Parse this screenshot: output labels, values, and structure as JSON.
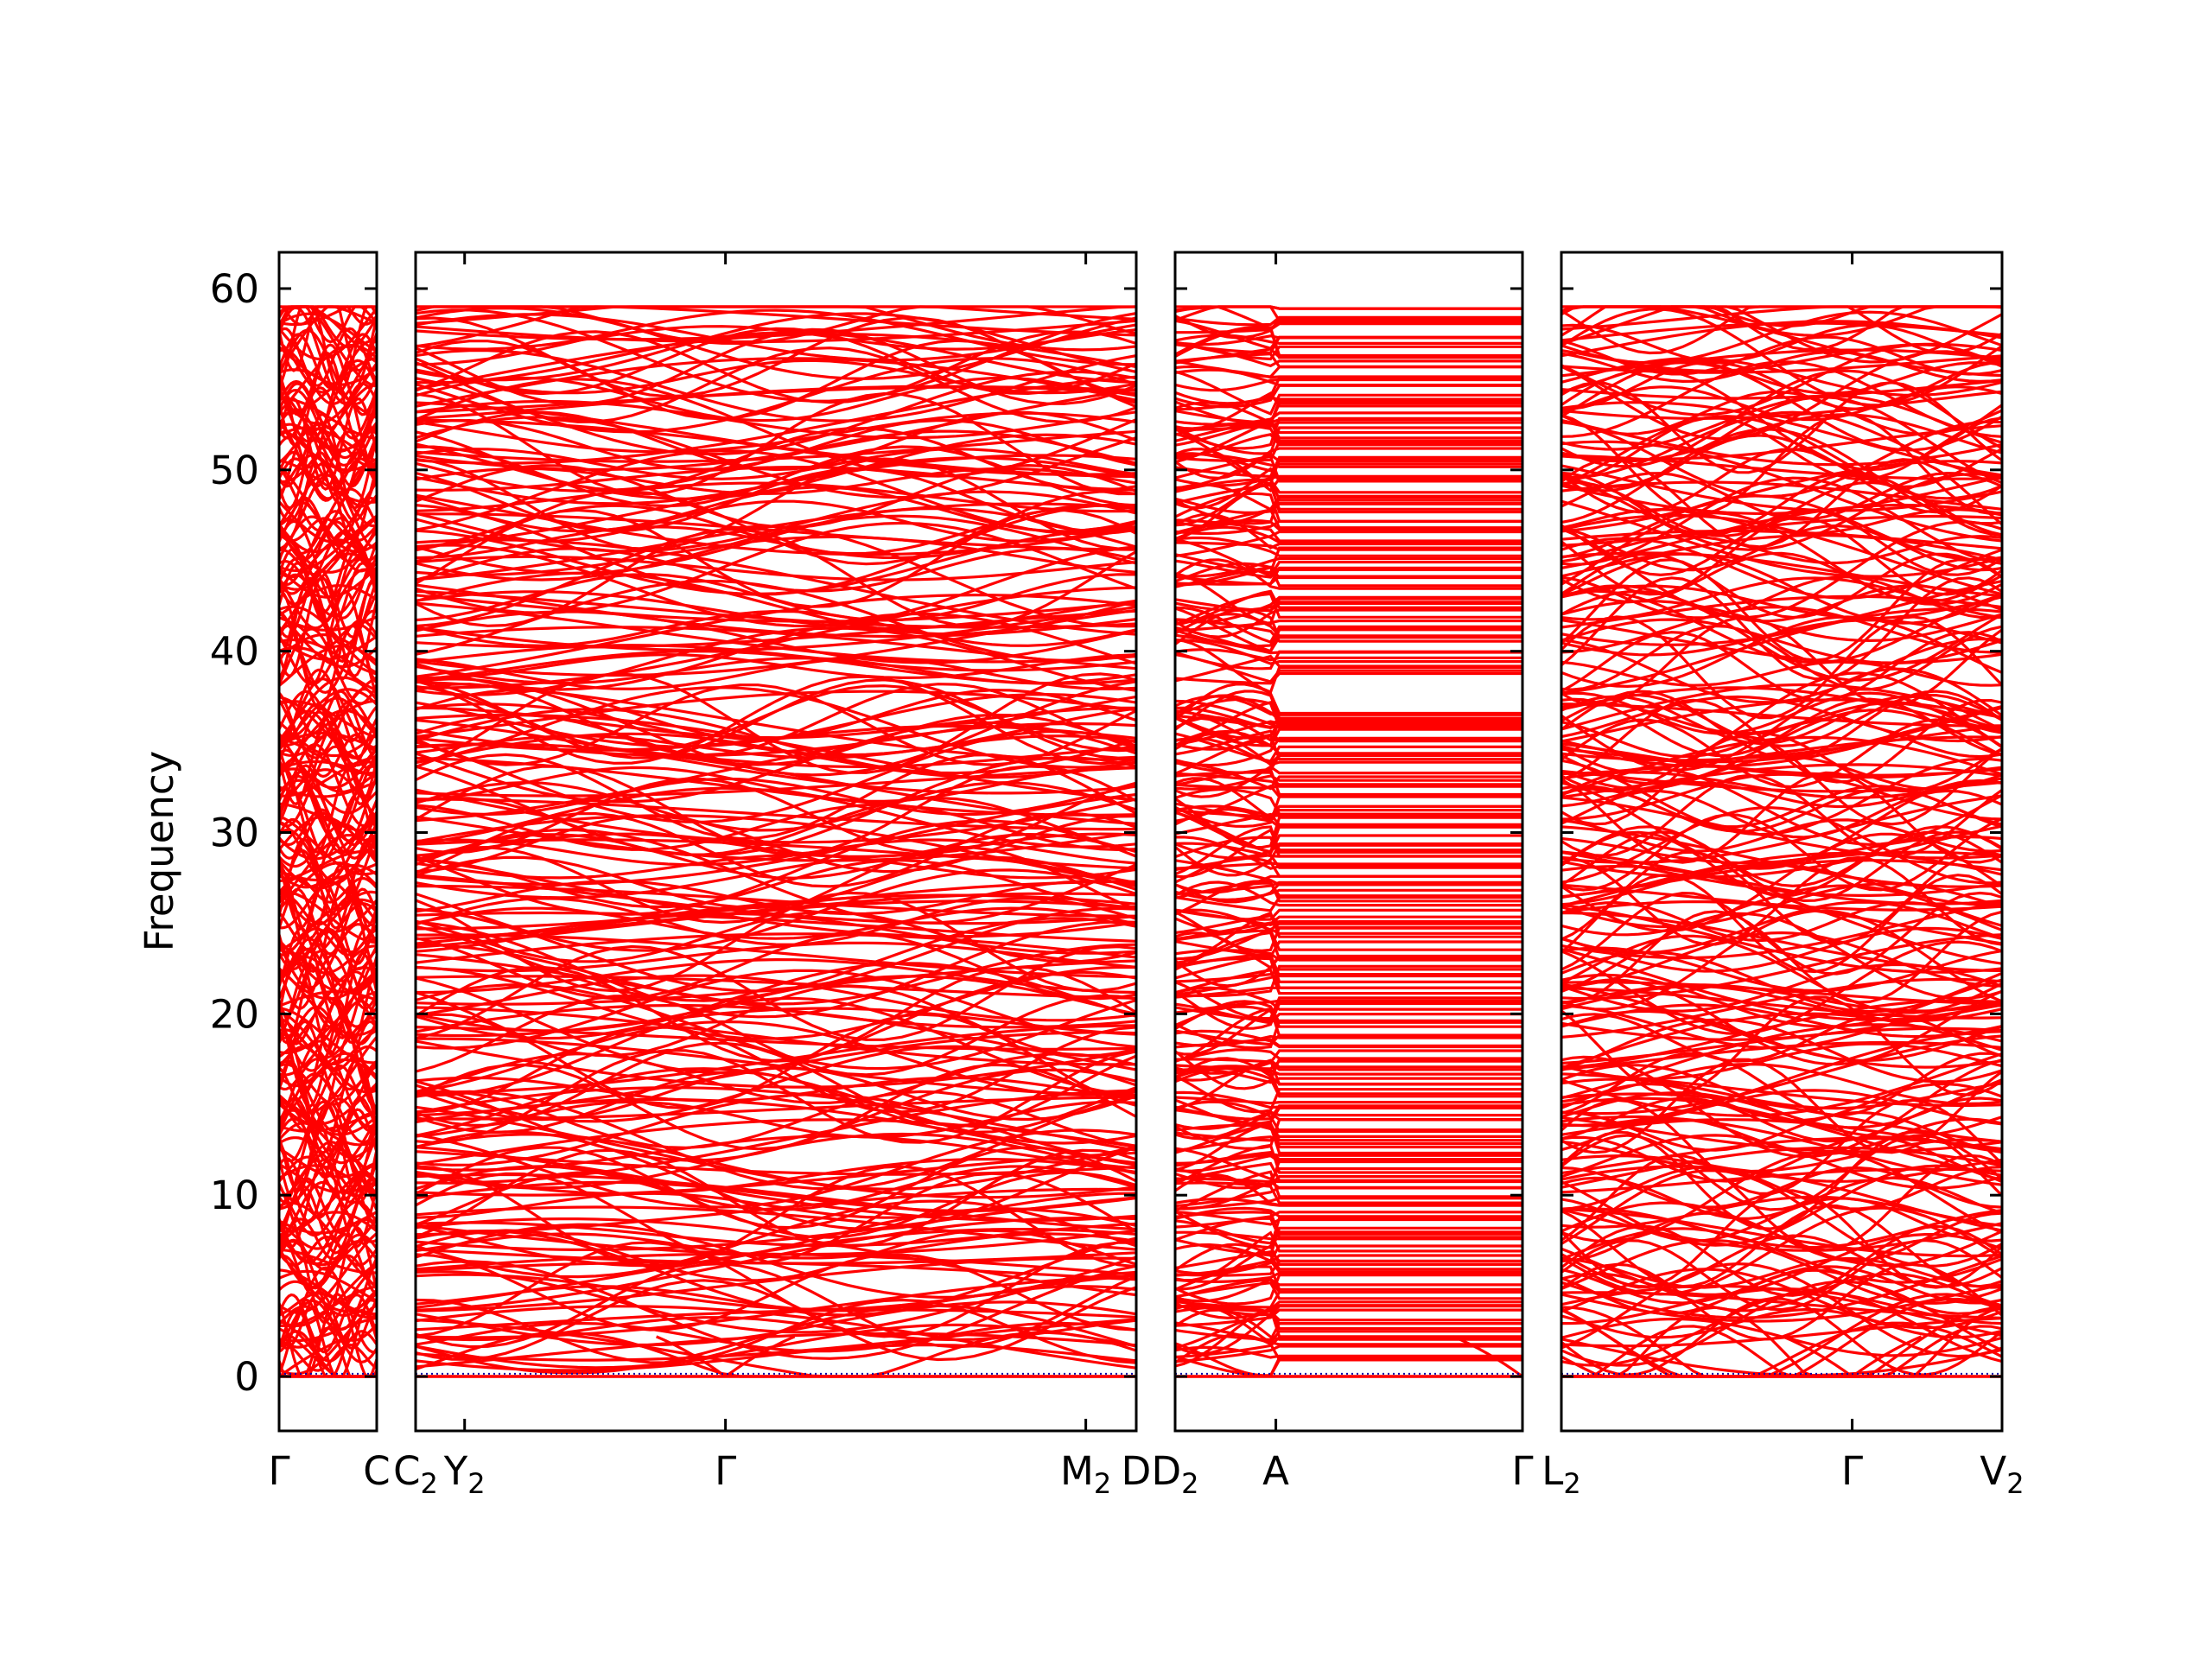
{
  "chart_data": {
    "type": "line",
    "title": "",
    "xlabel": "",
    "ylabel": "Frequency",
    "ylim": [
      -3,
      62
    ],
    "yticks": [
      0,
      10,
      20,
      30,
      40,
      50,
      60
    ],
    "ytick_labels": [
      "0",
      "10",
      "20",
      "30",
      "40",
      "50",
      "60"
    ],
    "grid": false,
    "legend": "none",
    "colors": {
      "bands": "#ff0000",
      "acoustic_dotted": "#0000aa",
      "frame": "#000000"
    },
    "panels": [
      {
        "segments": [
          {
            "from": "Γ",
            "to": "C"
          }
        ],
        "tick_labels": [
          {
            "k": 0.0,
            "text": "Γ"
          },
          {
            "k": 1.0,
            "text": "C"
          }
        ]
      },
      {
        "segments": [
          {
            "from": "C2",
            "to": "Y2"
          },
          {
            "from": "Y2",
            "to": "Γ"
          },
          {
            "from": "Γ",
            "to": "M2"
          },
          {
            "from": "M2",
            "to": "D"
          }
        ],
        "tick_labels": [
          {
            "k": 0.0,
            "text": "C",
            "sub": "2"
          },
          {
            "k": 0.068,
            "text": "Y",
            "sub": "2"
          },
          {
            "k": 0.43,
            "text": "Γ"
          },
          {
            "k": 0.93,
            "text": "M",
            "sub": "2"
          },
          {
            "k": 1.0,
            "text": "D"
          }
        ]
      },
      {
        "segments": [
          {
            "from": "D2",
            "to": "A"
          },
          {
            "from": "A",
            "to": "Γ"
          }
        ],
        "tick_labels": [
          {
            "k": 0.0,
            "text": "D",
            "sub": "2"
          },
          {
            "k": 0.29,
            "text": "A"
          },
          {
            "k": 1.0,
            "text": "Γ"
          }
        ]
      },
      {
        "segments": [
          {
            "from": "L2",
            "to": "Γ"
          },
          {
            "from": "Γ",
            "to": "V2"
          }
        ],
        "tick_labels": [
          {
            "k": 0.0,
            "text": "L",
            "sub": "2"
          },
          {
            "k": 0.66,
            "text": "Γ"
          },
          {
            "k": 1.0,
            "text": "V",
            "sub": "2"
          }
        ]
      }
    ],
    "band_count": 288,
    "band_range": [
      0,
      59
    ]
  }
}
